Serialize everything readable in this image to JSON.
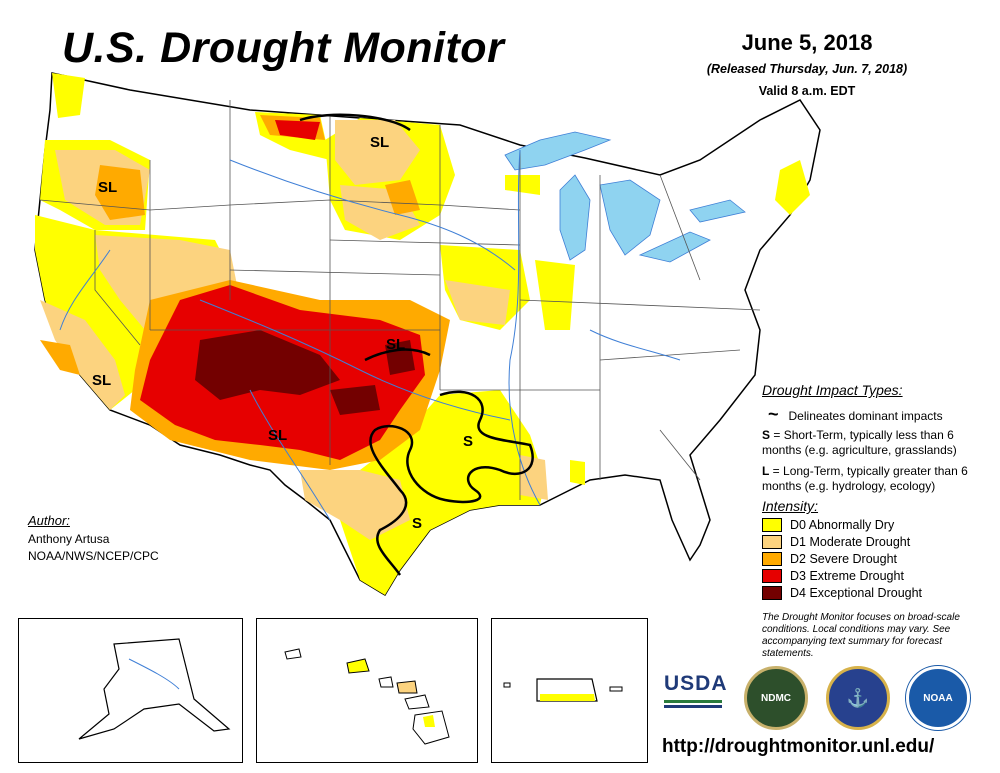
{
  "header": {
    "title": "U.S. Drought Monitor",
    "date": "June 5, 2018",
    "released": "(Released Thursday, Jun. 7, 2018)",
    "valid": "Valid 8 a.m. EDT"
  },
  "map_labels": [
    "SL",
    "SL",
    "SL",
    "SL",
    "SL",
    "S",
    "S"
  ],
  "impact_types": {
    "title": "Drought Impact Types:",
    "line_symbol": "~",
    "line_desc": "Delineates dominant impacts",
    "short_key": "S",
    "short_desc": " = Short-Term, typically less than 6 months (e.g. agriculture, grasslands)",
    "long_key": "L",
    "long_desc": " = Long-Term, typically greater than 6 months (e.g. hydrology, ecology)"
  },
  "intensity": {
    "title": "Intensity:",
    "levels": [
      {
        "label": "D0 Abnormally Dry",
        "color": "#ffff00"
      },
      {
        "label": "D1 Moderate Drought",
        "color": "#fcd37f"
      },
      {
        "label": "D2 Severe Drought",
        "color": "#ffaa00"
      },
      {
        "label": "D3 Extreme Drought",
        "color": "#e60000"
      },
      {
        "label": "D4 Exceptional Drought",
        "color": "#730000"
      }
    ]
  },
  "note": "The Drought Monitor focuses on broad-scale conditions. Local conditions may vary. See accompanying text summary for forecast statements.",
  "author": {
    "title": "Author:",
    "name": "Anthony Artusa",
    "org": "NOAA/NWS/NCEP/CPC"
  },
  "logos": {
    "usda": "USDA",
    "ndmc": "NDMC",
    "noaa": "NOAA"
  },
  "url": "http://droughtmonitor.unl.edu/",
  "colors": {
    "water": "#8fd3f0",
    "river": "#3f7fd6",
    "border": "#555555"
  }
}
